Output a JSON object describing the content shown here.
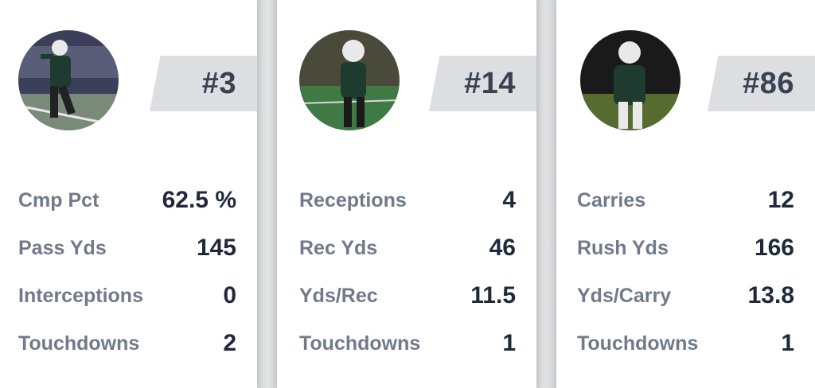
{
  "players": [
    {
      "number": "#3",
      "stats": [
        {
          "label": "Cmp Pct",
          "value": "62.5 %"
        },
        {
          "label": "Pass Yds",
          "value": "145"
        },
        {
          "label": "Interceptions",
          "value": "0"
        },
        {
          "label": "Touchdowns",
          "value": "2"
        }
      ]
    },
    {
      "number": "#14",
      "stats": [
        {
          "label": "Receptions",
          "value": "4"
        },
        {
          "label": "Rec Yds",
          "value": "46"
        },
        {
          "label": "Yds/Rec",
          "value": "11.5"
        },
        {
          "label": "Touchdowns",
          "value": "1"
        }
      ]
    },
    {
      "number": "#86",
      "stats": [
        {
          "label": "Carries",
          "value": "12"
        },
        {
          "label": "Rush Yds",
          "value": "166"
        },
        {
          "label": "Yds/Carry",
          "value": "13.8"
        },
        {
          "label": "Touchdowns",
          "value": "1"
        }
      ]
    }
  ],
  "colors": {
    "jersey": "#1d3b2e",
    "label": "#6f7b8a",
    "value": "#1e2a3a",
    "tag_bg": "#dcdee1"
  }
}
